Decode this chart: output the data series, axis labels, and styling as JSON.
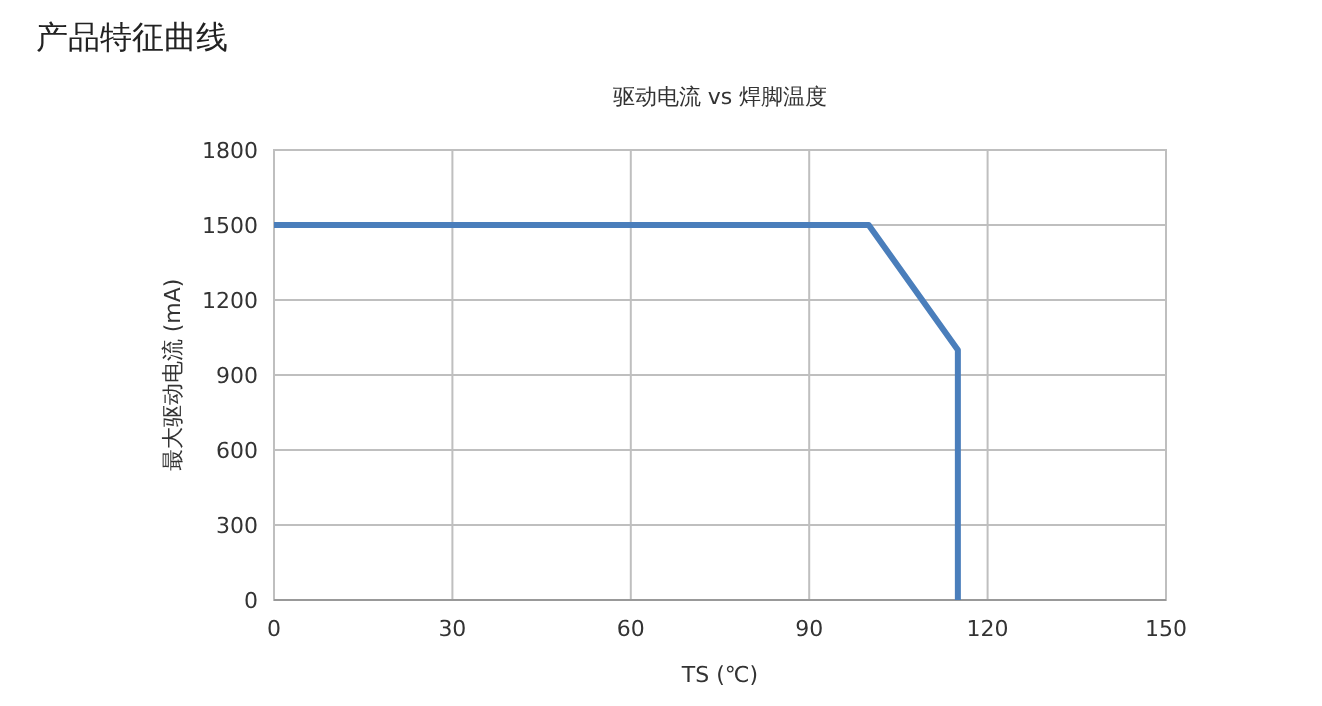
{
  "chart_data": {
    "type": "line",
    "title": "产品特征曲线",
    "subtitle": "驱动电流 vs 焊脚温度",
    "xlabel": "TS (℃)",
    "ylabel": "最大驱动电流 (mA)",
    "series": [
      {
        "color": "#4a7ebb",
        "x": [
          0,
          100,
          115,
          115
        ],
        "values": [
          1500,
          1500,
          1000,
          0
        ]
      }
    ],
    "xlim": [
      0,
      150
    ],
    "xticks": [
      0,
      30,
      60,
      90,
      120,
      150
    ],
    "ylim": [
      0,
      1800
    ],
    "yticks": [
      0,
      300,
      600,
      900,
      1200,
      1500,
      1800
    ],
    "grid": true,
    "marker": "none",
    "line_style": "solid"
  }
}
